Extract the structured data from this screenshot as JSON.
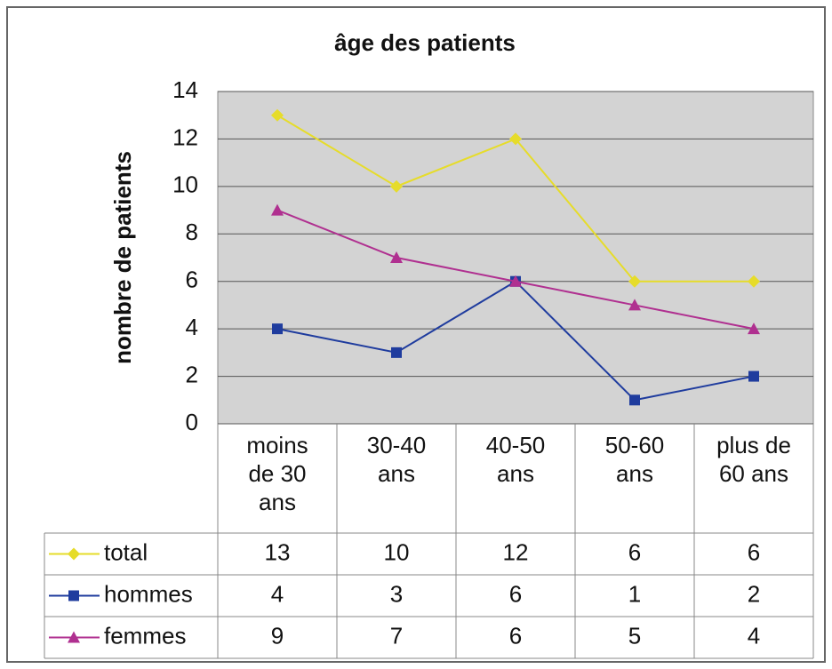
{
  "chart_data": {
    "type": "line",
    "title": "âge des patients",
    "y_label": "nombre de patients",
    "categories": [
      "moins de 30 ans",
      "30-40 ans",
      "40-50 ans",
      "50-60 ans",
      "plus de 60 ans"
    ],
    "series": [
      {
        "name": "total",
        "color": "#e6dc2a",
        "marker": "diamond",
        "values": [
          13,
          10,
          12,
          6,
          6
        ]
      },
      {
        "name": "hommes",
        "color": "#1f3c9e",
        "marker": "square",
        "values": [
          4,
          3,
          6,
          1,
          2
        ]
      },
      {
        "name": "femmes",
        "color": "#b03090",
        "marker": "triangle",
        "values": [
          9,
          7,
          6,
          5,
          4
        ]
      }
    ],
    "ylim": [
      0,
      14
    ],
    "yticks": [
      0,
      2,
      4,
      6,
      8,
      10,
      12,
      14
    ],
    "grid": true
  }
}
